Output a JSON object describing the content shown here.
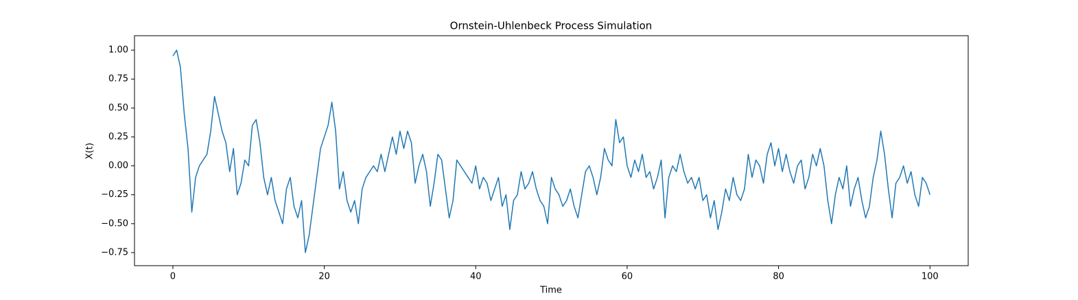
{
  "chart_data": {
    "type": "line",
    "title": "Ornstein-Uhlenbeck Process Simulation",
    "x_label": "Time",
    "y_label": "X(t)",
    "color": "#1f77b4",
    "x": [
      0,
      0.5,
      1,
      1.5,
      2,
      2.5,
      3,
      3.5,
      4,
      4.5,
      5,
      5.5,
      6,
      6.5,
      7,
      7.5,
      8,
      8.5,
      9,
      9.5,
      10,
      10.5,
      11,
      11.5,
      12,
      12.5,
      13,
      13.5,
      14,
      14.5,
      15,
      15.5,
      16,
      16.5,
      17,
      17.5,
      18,
      18.5,
      19,
      19.5,
      20,
      20.5,
      21,
      21.5,
      22,
      22.5,
      23,
      23.5,
      24,
      24.5,
      25,
      25.5,
      26,
      26.5,
      27,
      27.5,
      28,
      28.5,
      29,
      29.5,
      30,
      30.5,
      31,
      31.5,
      32,
      32.5,
      33,
      33.5,
      34,
      34.5,
      35,
      35.5,
      36,
      36.5,
      37,
      37.5,
      38,
      38.5,
      39,
      39.5,
      40,
      40.5,
      41,
      41.5,
      42,
      42.5,
      43,
      43.5,
      44,
      44.5,
      45,
      45.5,
      46,
      46.5,
      47,
      47.5,
      48,
      48.5,
      49,
      49.5,
      50,
      50.5,
      51,
      51.5,
      52,
      52.5,
      53,
      53.5,
      54,
      54.5,
      55,
      55.5,
      56,
      56.5,
      57,
      57.5,
      58,
      58.5,
      59,
      59.5,
      60,
      60.5,
      61,
      61.5,
      62,
      62.5,
      63,
      63.5,
      64,
      64.5,
      65,
      65.5,
      66,
      66.5,
      67,
      67.5,
      68,
      68.5,
      69,
      69.5,
      70,
      70.5,
      71,
      71.5,
      72,
      72.5,
      73,
      73.5,
      74,
      74.5,
      75,
      75.5,
      76,
      76.5,
      77,
      77.5,
      78,
      78.5,
      79,
      79.5,
      80,
      80.5,
      81,
      81.5,
      82,
      82.5,
      83,
      83.5,
      84,
      84.5,
      85,
      85.5,
      86,
      86.5,
      87,
      87.5,
      88,
      88.5,
      89,
      89.5,
      90,
      90.5,
      91,
      91.5,
      92,
      92.5,
      93,
      93.5,
      94,
      94.5,
      95,
      95.5,
      96,
      96.5,
      97,
      97.5,
      98,
      98.5,
      99,
      99.5,
      100
    ],
    "values": [
      0.95,
      1.0,
      0.85,
      0.45,
      0.15,
      -0.4,
      -0.1,
      0.0,
      0.05,
      0.1,
      0.3,
      0.6,
      0.45,
      0.3,
      0.2,
      -0.05,
      0.15,
      -0.25,
      -0.15,
      0.05,
      0.0,
      0.35,
      0.4,
      0.2,
      -0.1,
      -0.25,
      -0.1,
      -0.3,
      -0.4,
      -0.5,
      -0.2,
      -0.1,
      -0.35,
      -0.45,
      -0.3,
      -0.75,
      -0.6,
      -0.35,
      -0.1,
      0.15,
      0.25,
      0.35,
      0.55,
      0.3,
      -0.2,
      -0.05,
      -0.3,
      -0.4,
      -0.3,
      -0.5,
      -0.2,
      -0.1,
      -0.05,
      0.0,
      -0.05,
      0.1,
      -0.05,
      0.1,
      0.25,
      0.1,
      0.3,
      0.15,
      0.3,
      0.2,
      -0.15,
      0.0,
      0.1,
      -0.05,
      -0.35,
      -0.15,
      0.1,
      0.05,
      -0.2,
      -0.45,
      -0.3,
      0.05,
      0.0,
      -0.05,
      -0.1,
      -0.15,
      0.0,
      -0.2,
      -0.1,
      -0.15,
      -0.3,
      -0.2,
      -0.1,
      -0.35,
      -0.25,
      -0.55,
      -0.3,
      -0.25,
      -0.05,
      -0.2,
      -0.15,
      -0.05,
      -0.2,
      -0.3,
      -0.35,
      -0.5,
      -0.1,
      -0.2,
      -0.25,
      -0.35,
      -0.3,
      -0.2,
      -0.35,
      -0.45,
      -0.25,
      -0.05,
      0.0,
      -0.1,
      -0.25,
      -0.1,
      0.15,
      0.05,
      0.0,
      0.4,
      0.2,
      0.25,
      0.0,
      -0.1,
      0.05,
      -0.05,
      0.1,
      -0.1,
      -0.05,
      -0.2,
      -0.1,
      0.05,
      -0.45,
      -0.1,
      0.0,
      -0.05,
      0.1,
      -0.05,
      -0.15,
      -0.1,
      -0.2,
      -0.1,
      -0.3,
      -0.25,
      -0.45,
      -0.3,
      -0.55,
      -0.4,
      -0.2,
      -0.3,
      -0.1,
      -0.25,
      -0.3,
      -0.2,
      0.1,
      -0.1,
      0.05,
      0.0,
      -0.15,
      0.1,
      0.2,
      0.0,
      0.15,
      -0.05,
      0.1,
      -0.05,
      -0.15,
      0.0,
      0.05,
      -0.2,
      -0.1,
      0.1,
      0.0,
      0.15,
      0.0,
      -0.3,
      -0.5,
      -0.25,
      -0.1,
      -0.2,
      0.0,
      -0.35,
      -0.2,
      -0.1,
      -0.3,
      -0.45,
      -0.35,
      -0.1,
      0.05,
      0.3,
      0.1,
      -0.2,
      -0.45,
      -0.15,
      -0.1,
      0.0,
      -0.15,
      -0.05,
      -0.25,
      -0.35,
      -0.1,
      -0.15,
      -0.25
    ],
    "xlim": [
      -5.07,
      105.05
    ],
    "ylim": [
      -0.863,
      1.125
    ],
    "xticks": [
      0,
      20,
      40,
      60,
      80,
      100
    ],
    "yticks": [
      {
        "value": -0.75,
        "label": "−0.75"
      },
      {
        "value": -0.5,
        "label": "−0.50"
      },
      {
        "value": -0.25,
        "label": "−0.25"
      },
      {
        "value": 0,
        "label": "0.00"
      },
      {
        "value": 0.25,
        "label": "0.25"
      },
      {
        "value": 0.5,
        "label": "0.50"
      },
      {
        "value": 0.75,
        "label": "0.75"
      },
      {
        "value": 1,
        "label": "1.00"
      }
    ],
    "grid": false
  }
}
